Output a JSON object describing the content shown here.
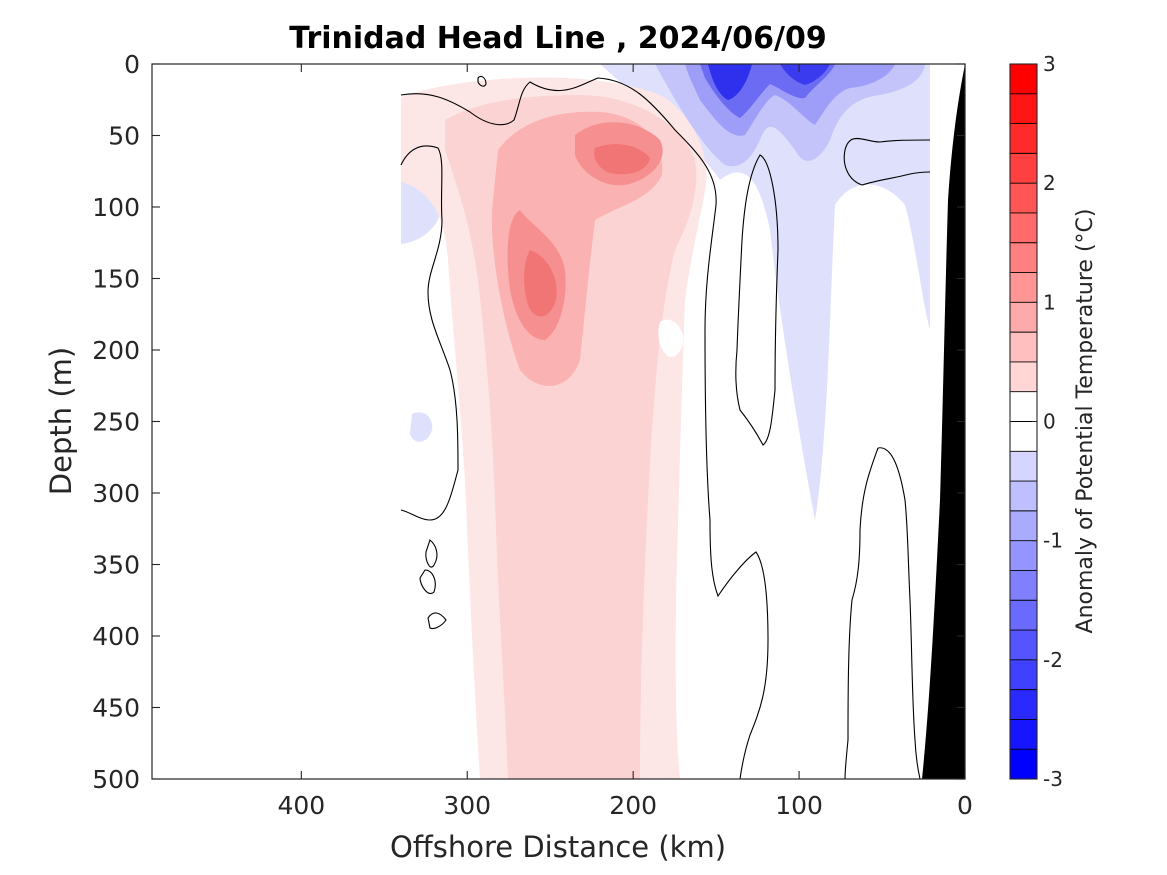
{
  "chart_data": {
    "type": "heatmap",
    "title": "Trinidad Head Line , 2024/06/09",
    "xlabel": "Offshore Distance (km)",
    "ylabel": "Depth (m)",
    "colorbar_label": "Anomaly of Potential Temperature (°C)",
    "xlim": [
      490,
      0
    ],
    "ylim": [
      500,
      0
    ],
    "x_reversed": true,
    "y_reversed": true,
    "x_ticks": [
      400,
      300,
      200,
      100,
      0
    ],
    "x_tick_labels": [
      "400",
      "300",
      "200",
      "100",
      "0"
    ],
    "y_ticks": [
      0,
      50,
      100,
      150,
      200,
      250,
      300,
      350,
      400,
      450,
      500
    ],
    "y_tick_labels": [
      "0",
      "50",
      "100",
      "150",
      "200",
      "250",
      "300",
      "350",
      "400",
      "450",
      "500"
    ],
    "colorbar_range": [
      -3,
      3
    ],
    "colorbar_ticks": [
      3,
      2,
      1,
      0,
      -1,
      -2,
      -3
    ],
    "colorbar_tick_labels": [
      "3",
      "2",
      "1",
      "0",
      "-1",
      "-2",
      "-3"
    ],
    "contour_step": 0.25,
    "colormap": "blue-white-red diverging",
    "colors": {
      "warm": "#ff0000",
      "cold": "#0000ff",
      "neutral": "#ffffff",
      "seafloor": "#000000"
    },
    "data_coverage_km": [
      340,
      20
    ],
    "grid": false,
    "features": [
      {
        "name": "warm core",
        "distance_km": 260,
        "depth_m": 160,
        "anomaly_c": 1.0
      },
      {
        "name": "shallow warm maximum",
        "distance_km": 205,
        "depth_m": 65,
        "anomaly_c": 1.3
      },
      {
        "name": "warm tongue",
        "distance_km": 240,
        "depth_m": 400,
        "anomaly_c": 0.4
      },
      {
        "name": "cold surface core",
        "distance_km": 145,
        "depth_m": 10,
        "anomaly_c": -2.2
      },
      {
        "name": "cold surface core",
        "distance_km": 95,
        "depth_m": 10,
        "anomaly_c": -1.6
      },
      {
        "name": "offshore cold patch",
        "distance_km": 330,
        "depth_m": 110,
        "anomaly_c": -0.4
      }
    ]
  }
}
